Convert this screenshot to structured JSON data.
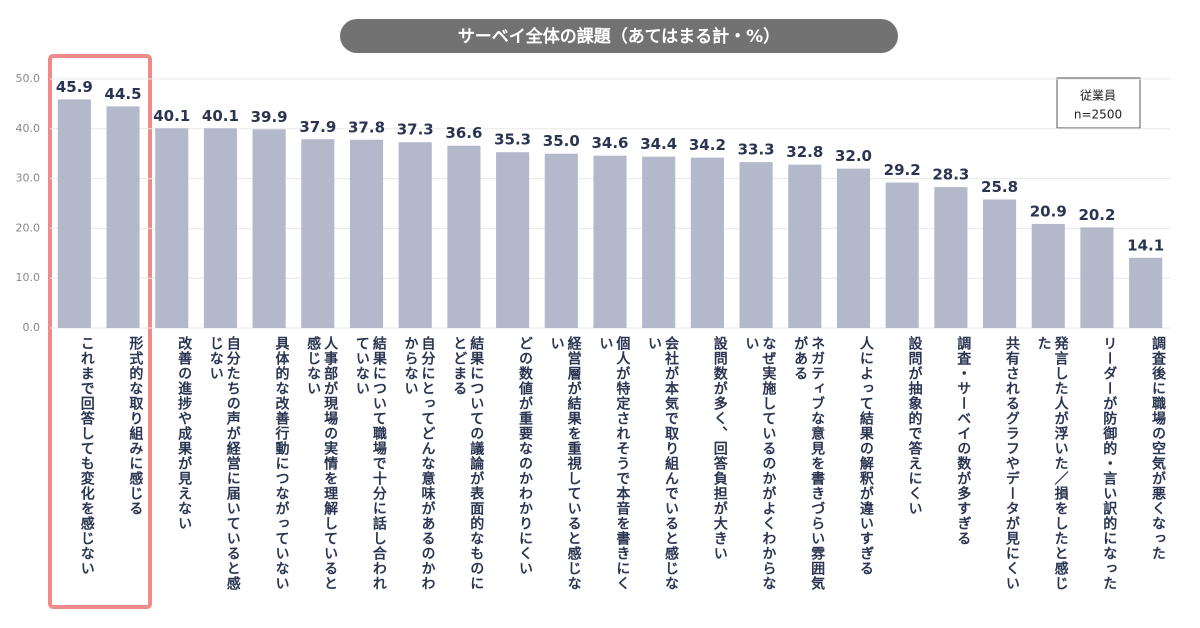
{
  "chart_data": {
    "type": "bar",
    "title": "サーベイ全体の課題（あてはまる計・%）",
    "legend_title": "従業員",
    "legend_note": "n=2500",
    "categories": [
      "これまで回答しても変化を感じない",
      "形式的な取り組みに感じる",
      "改善の進捗や成果が見えない",
      "自分たちの声が経営に届いていると感じない",
      "具体的な改善行動につながっていない",
      "人事部が現場の実情を理解していると感じない",
      "結果について職場で十分に話し合われていない",
      "自分にとってどんな意味があるのかわからない",
      "結果についての議論が表面的なものにとどまる",
      "どの数値が重要なのかわかりにくい",
      "経営層が結果を重視していると感じない",
      "個人が特定されそうで本音を書きにくい",
      "会社が本気で取り組んでいると感じない",
      "設問数が多く、回答負担が大きい",
      "なぜ実施しているのかがよくわからない",
      "ネガティブな意見を書きづらい雰囲気がある",
      "人によって結果の解釈が違いすぎる",
      "設問が抽象的で答えにくい",
      "調査・サーベイの数が多すぎる",
      "共有されるグラフやデータが見にくい",
      "発言した人が浮いた／損をしたと感じた",
      "リーダーが防御的・言い訳的になった",
      "調査後に職場の空気が悪くなった"
    ],
    "values": [
      45.9,
      44.5,
      40.1,
      40.1,
      39.9,
      37.9,
      37.8,
      37.3,
      36.6,
      35.3,
      35.0,
      34.6,
      34.4,
      34.2,
      33.3,
      32.8,
      32.0,
      29.2,
      28.3,
      25.8,
      20.9,
      20.2,
      14.1
    ],
    "value_labels": [
      "45.9",
      "44.5",
      "40.1",
      "40.1",
      "39.9",
      "37.9",
      "37.8",
      "37.3",
      "36.6",
      "35.3",
      "35.0",
      "34.6",
      "34.4",
      "34.2",
      "33.3",
      "32.8",
      "32.0",
      "29.2",
      "28.3",
      "25.8",
      "20.9",
      "20.2",
      "14.1"
    ],
    "color": "#b3b8cb",
    "ylim": [
      0,
      50
    ],
    "yticks": [
      {
        "value": 0,
        "label": "0.0"
      },
      {
        "value": 10,
        "label": "10.0"
      },
      {
        "value": 20,
        "label": "20.0"
      },
      {
        "value": 30,
        "label": "30.0"
      },
      {
        "value": 40,
        "label": "40.0"
      },
      {
        "value": 50,
        "label": "50.0"
      }
    ],
    "grid": true
  }
}
